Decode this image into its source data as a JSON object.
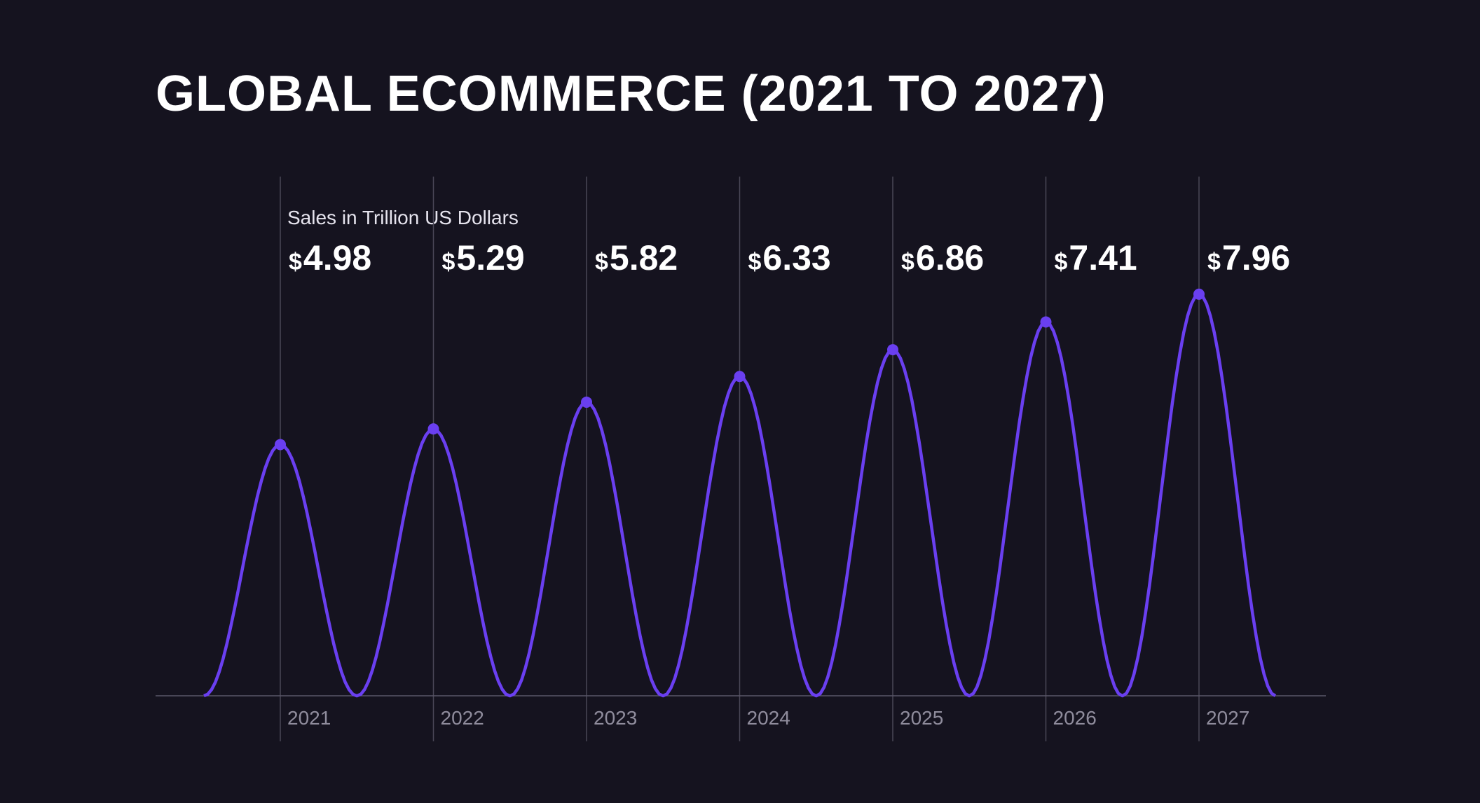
{
  "chart_data": {
    "type": "line",
    "title": "GLOBAL ECOMMERCE (2021 TO 2027)",
    "subtitle": "Sales in Trillion US Dollars",
    "value_prefix": "$",
    "categories": [
      "2021",
      "2022",
      "2023",
      "2024",
      "2025",
      "2026",
      "2027"
    ],
    "values": [
      4.98,
      5.29,
      5.82,
      6.33,
      6.86,
      7.41,
      7.96
    ],
    "value_labels": [
      "4.98",
      "5.29",
      "5.82",
      "6.33",
      "6.86",
      "7.41",
      "7.96"
    ],
    "ylim": [
      0,
      8.2
    ],
    "grid": true,
    "legend": "none",
    "colors": {
      "background": "#15131f",
      "line": "#6a3ff0",
      "grid": "#4a4757",
      "text": "#ffffff",
      "tick_text": "#8f8c9c"
    }
  }
}
